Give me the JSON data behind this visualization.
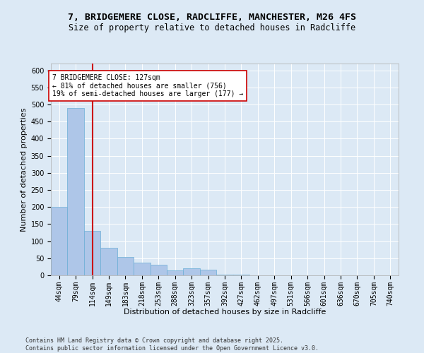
{
  "title_line1": "7, BRIDGEMERE CLOSE, RADCLIFFE, MANCHESTER, M26 4FS",
  "title_line2": "Size of property relative to detached houses in Radcliffe",
  "xlabel": "Distribution of detached houses by size in Radcliffe",
  "ylabel": "Number of detached properties",
  "bar_color": "#aec6e8",
  "bar_edge_color": "#6aaed6",
  "vline_color": "#cc0000",
  "vline_x_index": 2,
  "annotation_text": "7 BRIDGEMERE CLOSE: 127sqm\n← 81% of detached houses are smaller (756)\n19% of semi-detached houses are larger (177) →",
  "annotation_box_facecolor": "#ffffff",
  "annotation_box_edgecolor": "#cc0000",
  "categories": [
    "44sqm",
    "79sqm",
    "114sqm",
    "149sqm",
    "183sqm",
    "218sqm",
    "253sqm",
    "288sqm",
    "323sqm",
    "357sqm",
    "392sqm",
    "427sqm",
    "462sqm",
    "497sqm",
    "531sqm",
    "566sqm",
    "601sqm",
    "636sqm",
    "670sqm",
    "705sqm",
    "740sqm"
  ],
  "values": [
    200,
    490,
    130,
    80,
    53,
    38,
    32,
    14,
    20,
    16,
    2,
    2,
    1,
    1,
    1,
    1,
    0,
    0,
    0,
    1,
    1
  ],
  "ylim": [
    0,
    620
  ],
  "yticks": [
    0,
    50,
    100,
    150,
    200,
    250,
    300,
    350,
    400,
    450,
    500,
    550,
    600
  ],
  "background_color": "#dce9f5",
  "footer_text": "Contains HM Land Registry data © Crown copyright and database right 2025.\nContains public sector information licensed under the Open Government Licence v3.0.",
  "title_fontsize": 9.5,
  "subtitle_fontsize": 8.5,
  "axis_label_fontsize": 8,
  "tick_fontsize": 7,
  "annotation_fontsize": 7,
  "footer_fontsize": 6
}
